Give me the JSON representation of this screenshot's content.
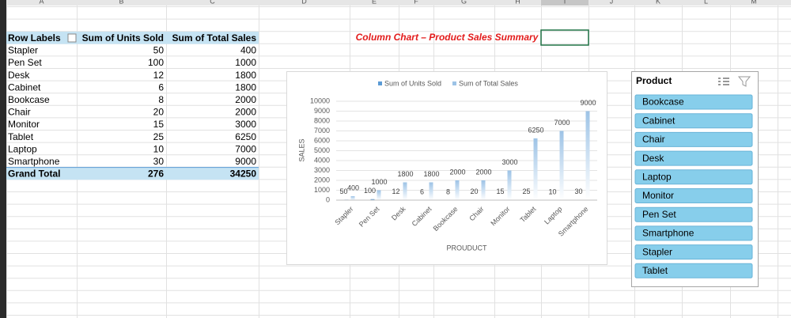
{
  "column_headers": [
    "A",
    "B",
    "C",
    "D",
    "E",
    "F",
    "G",
    "H",
    "I",
    "J",
    "K",
    "L",
    "M"
  ],
  "pivot_table": {
    "headers": [
      "Row Labels",
      "Sum of Units Sold",
      "Sum of Total Sales"
    ],
    "rows": [
      [
        "Stapler",
        "50",
        "400"
      ],
      [
        "Pen Set",
        "100",
        "1000"
      ],
      [
        "Desk",
        "12",
        "1800"
      ],
      [
        "Cabinet",
        "6",
        "1800"
      ],
      [
        "Bookcase",
        "8",
        "2000"
      ],
      [
        "Chair",
        "20",
        "2000"
      ],
      [
        "Monitor",
        "15",
        "3000"
      ],
      [
        "Tablet",
        "25",
        "6250"
      ],
      [
        "Laptop",
        "10",
        "7000"
      ],
      [
        "Smartphone",
        "30",
        "9000"
      ]
    ],
    "total": [
      "Grand Total",
      "276",
      "34250"
    ]
  },
  "chart_title": "Column Chart – Product Sales Summary",
  "chart_data": {
    "type": "bar",
    "categories": [
      "Stapler",
      "Pen Set",
      "Desk",
      "Cabinet",
      "Bookcase",
      "Chair",
      "Monitor",
      "Tablet",
      "Laptop",
      "Smartphone"
    ],
    "series": [
      {
        "name": "Sum of Units Sold",
        "color": "#5b9bd5",
        "values": [
          50,
          100,
          12,
          6,
          8,
          20,
          15,
          25,
          10,
          30
        ]
      },
      {
        "name": "Sum of Total Sales",
        "color": "#9dc3e6",
        "values": [
          400,
          1000,
          1800,
          1800,
          2000,
          2000,
          3000,
          6250,
          7000,
          9000
        ]
      }
    ],
    "ylim": [
      0,
      10000
    ],
    "yticks": [
      0,
      1000,
      2000,
      3000,
      4000,
      5000,
      6000,
      7000,
      8000,
      9000,
      10000
    ],
    "x_label": "PROUDUCT",
    "y_label": "SALES",
    "grid": true,
    "legend": "top"
  },
  "slicer": {
    "title": "Product",
    "items": [
      "Bookcase",
      "Cabinet",
      "Chair",
      "Desk",
      "Laptop",
      "Monitor",
      "Pen Set",
      "Smartphone",
      "Stapler",
      "Tablet"
    ]
  }
}
